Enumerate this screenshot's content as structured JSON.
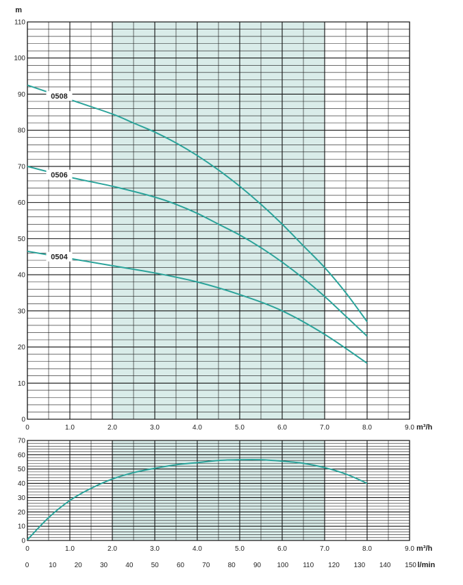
{
  "chart_data": [
    {
      "type": "line",
      "ylabel": "m",
      "xlabel": "m³/h",
      "xlim": [
        0,
        9
      ],
      "ylim": [
        0,
        110
      ],
      "x_ticks": [
        "0",
        "1.0",
        "2.0",
        "3.0",
        "4.0",
        "5.0",
        "6.0",
        "7.0",
        "8.0",
        "9.0"
      ],
      "y_ticks": [
        "0",
        "10",
        "20",
        "30",
        "40",
        "50",
        "60",
        "70",
        "80",
        "90",
        "100",
        "110"
      ],
      "shaded_range": [
        2.0,
        7.0
      ],
      "colors": {
        "curve": "#2aa39a",
        "shade": "#d9ece9",
        "grid": "#111111"
      },
      "series": [
        {
          "name": "0508",
          "x": [
            0,
            1,
            2,
            2.5,
            3,
            3.5,
            4,
            4.5,
            5,
            5.5,
            6,
            6.5,
            7,
            7.5,
            8
          ],
          "y": [
            92.5,
            88.5,
            84.5,
            82,
            79.5,
            76.5,
            73,
            69,
            64.5,
            59.5,
            54,
            48,
            42,
            35,
            27
          ]
        },
        {
          "name": "0506",
          "x": [
            0,
            1,
            2,
            3,
            3.5,
            4,
            4.5,
            5,
            5.5,
            6,
            6.5,
            7,
            7.5,
            8
          ],
          "y": [
            70,
            67,
            64.5,
            61.5,
            59.5,
            57,
            54,
            51,
            47.5,
            43.5,
            39,
            34,
            28.5,
            23
          ]
        },
        {
          "name": "0504",
          "x": [
            0,
            1,
            2,
            3,
            4,
            5,
            6,
            7,
            8
          ],
          "y": [
            46.5,
            44.5,
            42.5,
            40.5,
            38,
            34.5,
            30,
            23.5,
            15.5
          ]
        }
      ]
    },
    {
      "type": "line",
      "xlabel": "m³/h",
      "x2label": "l/min",
      "xlim": [
        0,
        9
      ],
      "ylim": [
        0,
        70
      ],
      "x_ticks": [
        "0",
        "1.0",
        "2.0",
        "3.0",
        "4.0",
        "5.0",
        "6.0",
        "7.0",
        "8.0",
        "9.0"
      ],
      "x2_ticks": [
        "0",
        "10",
        "20",
        "30",
        "40",
        "50",
        "60",
        "70",
        "80",
        "90",
        "100",
        "110",
        "120",
        "130",
        "140",
        "150"
      ],
      "y_ticks": [
        "0",
        "10",
        "20",
        "30",
        "40",
        "50",
        "60",
        "70"
      ],
      "shaded_range": [
        2.0,
        7.0
      ],
      "series": [
        {
          "name": "",
          "x": [
            0,
            0.5,
            1,
            1.5,
            2,
            2.5,
            3,
            3.5,
            4,
            4.5,
            5,
            5.5,
            6,
            6.5,
            7,
            7.5,
            8
          ],
          "y": [
            0.5,
            16,
            28,
            36.5,
            43,
            47.5,
            50.5,
            53,
            54.5,
            56,
            56.5,
            56.5,
            55.5,
            54,
            51,
            46.5,
            40
          ]
        }
      ]
    }
  ]
}
